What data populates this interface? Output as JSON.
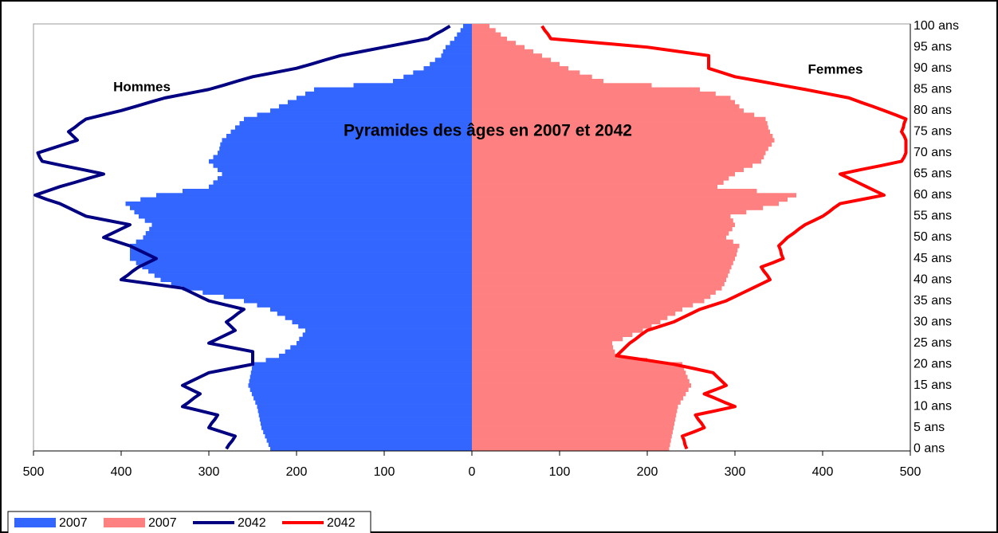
{
  "chart_data": {
    "type": "pyramid",
    "title": "Pyramides des âges en 2007 et 2042",
    "annotations": [
      "Hommes",
      "Femmes"
    ],
    "categories": [
      "0 ans",
      null,
      null,
      null,
      null,
      "5 ans",
      null,
      null,
      null,
      null,
      "10 ans",
      null,
      null,
      null,
      null,
      "15 ans",
      null,
      null,
      null,
      null,
      "20 ans",
      null,
      null,
      null,
      null,
      "25 ans",
      null,
      null,
      null,
      null,
      "30 ans",
      null,
      null,
      null,
      null,
      "35 ans",
      null,
      null,
      null,
      null,
      "40 ans",
      null,
      null,
      null,
      null,
      "45 ans",
      null,
      null,
      null,
      null,
      "50 ans",
      null,
      null,
      null,
      null,
      "55 ans",
      null,
      null,
      null,
      null,
      "60 ans",
      null,
      null,
      null,
      null,
      "65 ans",
      null,
      null,
      null,
      null,
      "70 ans",
      null,
      null,
      null,
      null,
      "75 ans",
      null,
      null,
      null,
      null,
      "80 ans",
      null,
      null,
      null,
      null,
      "85 ans",
      null,
      null,
      null,
      null,
      "90 ans",
      null,
      null,
      null,
      null,
      "95 ans",
      null,
      null,
      null,
      null,
      "100 ans"
    ],
    "xlim": [
      -500,
      500
    ],
    "xticks": [
      {
        "value": -500,
        "label": "500"
      },
      {
        "value": -400,
        "label": "400"
      },
      {
        "value": -300,
        "label": "300"
      },
      {
        "value": -200,
        "label": "200"
      },
      {
        "value": -100,
        "label": "100"
      },
      0,
      100,
      200,
      300,
      400,
      500
    ],
    "series": [
      {
        "name": "2007",
        "type": "bar",
        "color": "#3366ff",
        "values": [
          -230,
          -232,
          -234,
          -236,
          -238,
          -240,
          -241,
          -242,
          -243,
          -244,
          -245,
          -247,
          -249,
          -251,
          -253,
          -255,
          -254,
          -253,
          -252,
          -251,
          -250,
          -235,
          -220,
          -213,
          -207,
          -200,
          -197,
          -193,
          -190,
          -198,
          -205,
          -213,
          -222,
          -230,
          -245,
          -260,
          -283,
          -307,
          -330,
          -343,
          -355,
          -362,
          -369,
          -376,
          -383,
          -390,
          -390,
          -390,
          -390,
          -383,
          -375,
          -372,
          -368,
          -365,
          -373,
          -380,
          -385,
          -390,
          -395,
          -378,
          -360,
          -330,
          -300,
          -295,
          -290,
          -285,
          -290,
          -295,
          -300,
          -295,
          -290,
          -288,
          -287,
          -285,
          -280,
          -275,
          -270,
          -265,
          -260,
          -245,
          -230,
          -220,
          -210,
          -200,
          -190,
          -180,
          -135,
          -90,
          -78,
          -67,
          -55,
          -48,
          -42,
          -35,
          -33,
          -30,
          -25,
          -20,
          -17,
          -13,
          -10
        ]
      },
      {
        "name": "2007",
        "type": "bar",
        "color": "#ff8080",
        "values": [
          225,
          226,
          227,
          228,
          229,
          230,
          231,
          232,
          233,
          234,
          235,
          238,
          241,
          244,
          247,
          250,
          248,
          246,
          244,
          242,
          240,
          200,
          165,
          163,
          161,
          160,
          172,
          183,
          195,
          205,
          215,
          223,
          232,
          240,
          252,
          265,
          272,
          278,
          285,
          288,
          290,
          292,
          294,
          296,
          298,
          300,
          302,
          303,
          305,
          298,
          290,
          293,
          297,
          300,
          298,
          295,
          313,
          332,
          350,
          360,
          370,
          325,
          280,
          287,
          293,
          300,
          310,
          320,
          330,
          333,
          335,
          338,
          342,
          345,
          343,
          340,
          338,
          337,
          335,
          322,
          310,
          305,
          300,
          295,
          278,
          260,
          205,
          150,
          137,
          123,
          110,
          100,
          90,
          80,
          70,
          60,
          50,
          40,
          33,
          27,
          20
        ]
      },
      {
        "name": "2042",
        "type": "line",
        "color": "#000080",
        "values": [
          -280,
          -277,
          -273,
          -270,
          -285,
          -300,
          -297,
          -293,
          -290,
          -310,
          -330,
          -323,
          -317,
          -310,
          -320,
          -330,
          -320,
          -310,
          -300,
          -275,
          -250,
          -250,
          -250,
          -250,
          -275,
          -300,
          -290,
          -280,
          -270,
          -275,
          -280,
          -273,
          -267,
          -260,
          -280,
          -300,
          -310,
          -320,
          -330,
          -365,
          -400,
          -393,
          -387,
          -380,
          -370,
          -360,
          -370,
          -380,
          -390,
          -405,
          -420,
          -410,
          -400,
          -390,
          -415,
          -440,
          -450,
          -460,
          -470,
          -485,
          -498,
          -484,
          -470,
          -453,
          -437,
          -420,
          -443,
          -467,
          -490,
          -493,
          -495,
          -480,
          -465,
          -450,
          -455,
          -460,
          -453,
          -447,
          -440,
          -420,
          -400,
          -383,
          -367,
          -350,
          -325,
          -300,
          -283,
          -267,
          -250,
          -225,
          -200,
          -183,
          -167,
          -150,
          -125,
          -100,
          -75,
          -50,
          -42,
          -33,
          -25
        ]
      },
      {
        "name": "2042",
        "type": "line",
        "color": "#ff0000",
        "values": [
          245,
          243,
          242,
          240,
          253,
          265,
          262,
          258,
          255,
          278,
          300,
          288,
          277,
          265,
          278,
          290,
          285,
          280,
          275,
          253,
          230,
          198,
          165,
          170,
          175,
          180,
          187,
          193,
          200,
          215,
          230,
          240,
          250,
          260,
          275,
          290,
          300,
          310,
          320,
          330,
          340,
          337,
          333,
          330,
          343,
          355,
          353,
          352,
          350,
          355,
          360,
          367,
          373,
          380,
          390,
          400,
          407,
          413,
          420,
          445,
          470,
          460,
          450,
          440,
          430,
          420,
          443,
          467,
          490,
          493,
          495,
          495,
          495,
          495,
          493,
          490,
          492,
          493,
          495,
          483,
          470,
          457,
          443,
          430,
          405,
          380,
          353,
          327,
          300,
          285,
          270,
          270,
          270,
          270,
          235,
          200,
          145,
          90,
          87,
          83,
          80
        ]
      }
    ]
  }
}
